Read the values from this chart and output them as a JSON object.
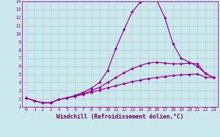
{
  "xlabel": "Windchill (Refroidissement éolien,°C)",
  "xlim": [
    -0.5,
    23.5
  ],
  "ylim": [
    1,
    14
  ],
  "xticks": [
    0,
    1,
    2,
    3,
    4,
    5,
    6,
    7,
    8,
    9,
    10,
    11,
    12,
    13,
    14,
    15,
    16,
    17,
    18,
    19,
    20,
    21,
    22,
    23
  ],
  "yticks": [
    1,
    2,
    3,
    4,
    5,
    6,
    7,
    8,
    9,
    10,
    11,
    12,
    13,
    14
  ],
  "background_color": "#cce8ec",
  "grid_color": "#aacccc",
  "line_color": "#990099",
  "xlabel_color": "#660066",
  "curve1_x": [
    0,
    1,
    2,
    3,
    4,
    5,
    6,
    7,
    8,
    9,
    10,
    11,
    12,
    13,
    14,
    15,
    16,
    17,
    18,
    19,
    20,
    21,
    22,
    23
  ],
  "curve1_y": [
    2.1,
    1.75,
    1.5,
    1.5,
    1.9,
    2.1,
    2.3,
    2.55,
    2.8,
    3.05,
    3.35,
    3.6,
    3.85,
    4.1,
    4.3,
    4.5,
    4.6,
    4.75,
    4.85,
    4.95,
    5.0,
    5.05,
    4.65,
    4.6
  ],
  "curve2_x": [
    0,
    1,
    2,
    3,
    4,
    5,
    6,
    7,
    8,
    9,
    10,
    11,
    12,
    13,
    14,
    15,
    16,
    17,
    18,
    19,
    20,
    21,
    22,
    23
  ],
  "curve2_y": [
    2.1,
    1.75,
    1.5,
    1.5,
    1.9,
    2.1,
    2.4,
    2.8,
    3.3,
    4.0,
    5.5,
    8.2,
    10.5,
    12.7,
    13.9,
    14.25,
    14.2,
    12.0,
    8.8,
    7.0,
    6.5,
    6.0,
    5.1,
    4.6
  ],
  "curve3_x": [
    0,
    1,
    2,
    3,
    4,
    5,
    6,
    7,
    8,
    9,
    10,
    11,
    12,
    13,
    14,
    15,
    16,
    17,
    18,
    19,
    20,
    21,
    22,
    23
  ],
  "curve3_y": [
    2.1,
    1.75,
    1.5,
    1.5,
    1.9,
    2.1,
    2.35,
    2.65,
    3.0,
    3.4,
    4.0,
    4.6,
    5.2,
    5.7,
    6.1,
    6.4,
    6.5,
    6.4,
    6.3,
    6.3,
    6.4,
    6.3,
    5.1,
    4.6
  ],
  "marker": "D",
  "marker_size": 2.0,
  "line_width": 0.9,
  "tick_fontsize": 5.0,
  "xlabel_fontsize": 6.0
}
